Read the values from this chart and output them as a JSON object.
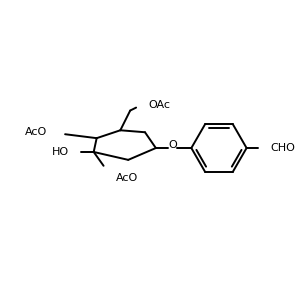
{
  "background_color": "#ffffff",
  "line_color": "#000000",
  "line_width": 1.4,
  "font_size": 8.0,
  "figure_size": [
    3.0,
    3.0
  ],
  "dpi": 100,
  "xlim": [
    0,
    300
  ],
  "ylim": [
    0,
    300
  ]
}
